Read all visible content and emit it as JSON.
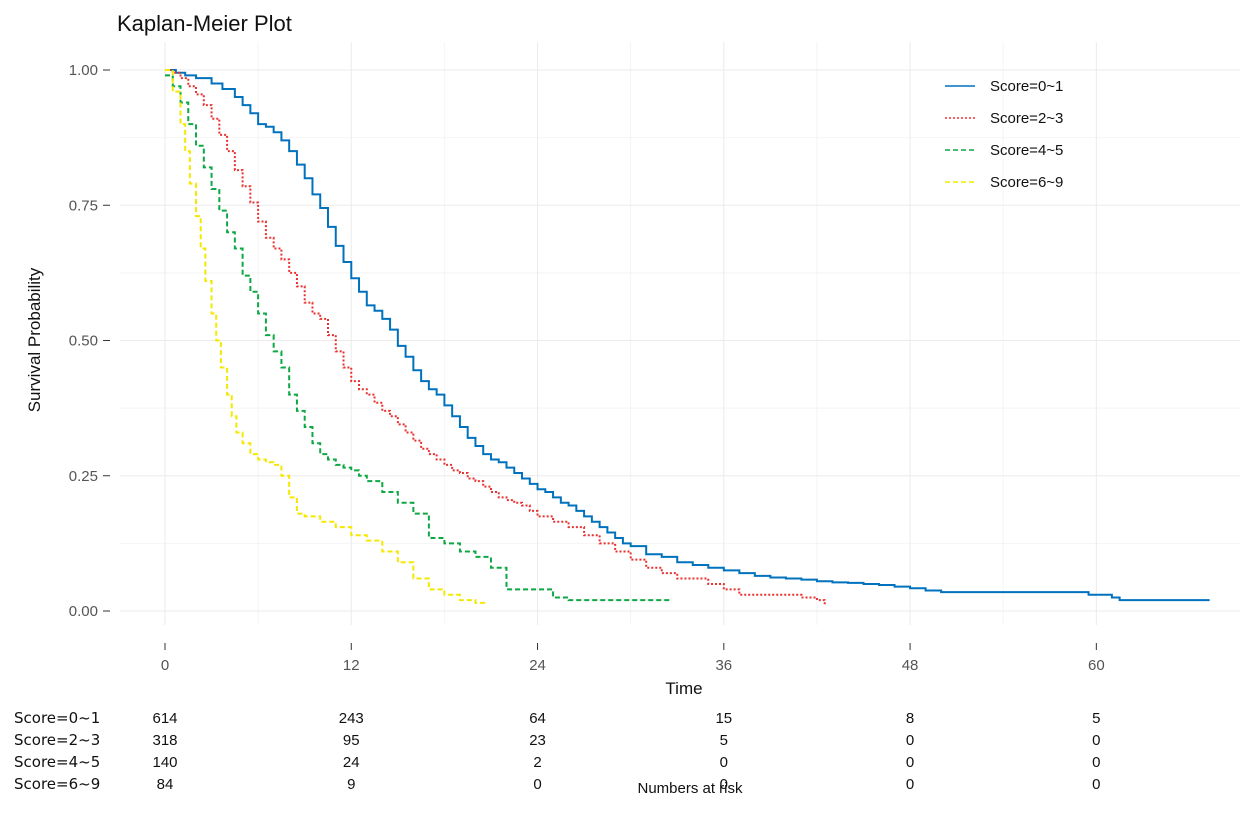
{
  "chart_data": {
    "type": "line",
    "title": "Kaplan-Meier Plot",
    "xlabel": "Time",
    "ylabel": "Survival Probability",
    "xlim": [
      0,
      67
    ],
    "ylim": [
      0,
      1
    ],
    "xticks": [
      0,
      12,
      24,
      36,
      48,
      60
    ],
    "yticks": [
      0,
      0.25,
      0.5,
      0.75,
      1
    ],
    "ytick_labels": [
      "0.00",
      "0.25",
      "0.50",
      "0.75",
      "1.00"
    ],
    "grid": true,
    "legend_position": "top-right",
    "series": [
      {
        "name": "Score=0~1",
        "color": "#0072BD",
        "dash": "solid",
        "x": [
          0,
          0.7,
          1.3,
          2,
          3,
          3.7,
          4.5,
          5,
          5.5,
          6,
          6.5,
          7,
          7.5,
          8,
          8.5,
          9,
          9.5,
          10,
          10.5,
          11,
          11.5,
          12,
          12.5,
          13,
          13.5,
          14,
          14.5,
          15,
          15.5,
          16,
          16.5,
          17,
          17.5,
          18,
          18.5,
          19,
          19.5,
          20,
          20.5,
          21,
          21.5,
          22,
          22.5,
          23,
          23.5,
          24,
          24.5,
          25,
          25.5,
          26,
          26.5,
          27,
          27.5,
          28,
          28.5,
          29,
          29.5,
          30,
          31,
          32,
          33,
          34,
          35,
          36,
          37,
          38,
          39,
          40,
          41,
          42,
          43,
          44,
          45,
          46,
          47,
          48,
          49,
          50,
          52,
          54,
          56,
          58,
          59.5,
          61,
          61.5,
          63,
          65,
          67.3
        ],
        "y": [
          1.0,
          0.995,
          0.99,
          0.985,
          0.975,
          0.965,
          0.95,
          0.935,
          0.92,
          0.9,
          0.895,
          0.885,
          0.87,
          0.85,
          0.825,
          0.8,
          0.77,
          0.745,
          0.71,
          0.675,
          0.645,
          0.615,
          0.59,
          0.565,
          0.555,
          0.54,
          0.52,
          0.49,
          0.47,
          0.445,
          0.425,
          0.41,
          0.4,
          0.38,
          0.36,
          0.34,
          0.32,
          0.305,
          0.29,
          0.28,
          0.275,
          0.265,
          0.255,
          0.245,
          0.235,
          0.225,
          0.22,
          0.21,
          0.2,
          0.195,
          0.185,
          0.175,
          0.165,
          0.155,
          0.145,
          0.135,
          0.125,
          0.12,
          0.105,
          0.1,
          0.09,
          0.085,
          0.08,
          0.075,
          0.07,
          0.065,
          0.062,
          0.06,
          0.058,
          0.055,
          0.053,
          0.052,
          0.05,
          0.048,
          0.045,
          0.042,
          0.038,
          0.035,
          0.035,
          0.035,
          0.035,
          0.035,
          0.03,
          0.025,
          0.02,
          0.02,
          0.02,
          0.02
        ]
      },
      {
        "name": "Score=2~3",
        "color": "#E8312F",
        "dash": "dotted",
        "x": [
          0,
          0.5,
          1,
          1.5,
          2,
          2.5,
          3,
          3.5,
          4,
          4.5,
          5,
          5.5,
          6,
          6.5,
          7,
          7.5,
          8,
          8.5,
          9,
          9.5,
          10,
          10.5,
          11,
          11.5,
          12,
          12.5,
          13,
          13.5,
          14,
          14.5,
          15,
          15.5,
          16,
          16.5,
          17,
          17.5,
          18,
          18.5,
          19,
          19.5,
          20,
          20.5,
          21,
          21.5,
          22,
          22.5,
          23,
          23.5,
          24,
          25,
          26,
          27,
          28,
          29,
          30,
          31,
          32,
          33,
          34,
          35,
          36,
          37,
          38,
          39,
          40,
          41,
          42,
          42.5
        ],
        "y": [
          1.0,
          0.995,
          0.985,
          0.97,
          0.955,
          0.935,
          0.91,
          0.88,
          0.85,
          0.815,
          0.785,
          0.755,
          0.72,
          0.69,
          0.67,
          0.65,
          0.625,
          0.6,
          0.57,
          0.55,
          0.54,
          0.51,
          0.48,
          0.45,
          0.425,
          0.41,
          0.4,
          0.385,
          0.37,
          0.36,
          0.345,
          0.33,
          0.315,
          0.3,
          0.29,
          0.28,
          0.27,
          0.26,
          0.255,
          0.245,
          0.24,
          0.23,
          0.22,
          0.21,
          0.205,
          0.2,
          0.195,
          0.185,
          0.175,
          0.165,
          0.155,
          0.14,
          0.125,
          0.11,
          0.095,
          0.08,
          0.07,
          0.06,
          0.06,
          0.05,
          0.04,
          0.03,
          0.03,
          0.03,
          0.03,
          0.025,
          0.02,
          0.01
        ]
      },
      {
        "name": "Score=4~5",
        "color": "#0DA843",
        "dash": "dashed",
        "x": [
          0,
          0.5,
          1,
          1.5,
          2,
          2.5,
          3,
          3.5,
          4,
          4.5,
          5,
          5.5,
          6,
          6.5,
          7,
          7.5,
          8,
          8.5,
          9,
          9.5,
          10,
          10.5,
          11,
          11.5,
          12,
          12.5,
          13,
          14,
          15,
          16,
          17,
          18,
          19,
          20,
          21,
          22,
          23,
          24,
          25,
          26,
          28,
          30,
          32.5
        ],
        "y": [
          0.99,
          0.97,
          0.94,
          0.9,
          0.86,
          0.82,
          0.78,
          0.74,
          0.7,
          0.67,
          0.62,
          0.59,
          0.55,
          0.51,
          0.48,
          0.45,
          0.4,
          0.37,
          0.34,
          0.31,
          0.29,
          0.28,
          0.27,
          0.265,
          0.26,
          0.25,
          0.24,
          0.22,
          0.2,
          0.18,
          0.135,
          0.125,
          0.11,
          0.1,
          0.08,
          0.04,
          0.04,
          0.04,
          0.025,
          0.02,
          0.02,
          0.02,
          0.02
        ]
      },
      {
        "name": "Score=6~9",
        "color": "#F5E800",
        "dash": "dashed",
        "x": [
          0,
          0.5,
          1,
          1.3,
          1.6,
          2,
          2.3,
          2.6,
          3,
          3.3,
          3.6,
          4,
          4.3,
          4.6,
          5,
          5.5,
          6,
          6.5,
          7,
          7.5,
          8,
          8.5,
          9,
          10,
          11,
          12,
          13,
          14,
          15,
          16,
          17,
          18,
          19,
          20,
          20.8
        ],
        "y": [
          1.0,
          0.96,
          0.9,
          0.85,
          0.79,
          0.73,
          0.67,
          0.61,
          0.55,
          0.5,
          0.45,
          0.4,
          0.36,
          0.33,
          0.31,
          0.29,
          0.28,
          0.275,
          0.27,
          0.25,
          0.21,
          0.18,
          0.175,
          0.165,
          0.155,
          0.14,
          0.13,
          0.11,
          0.09,
          0.06,
          0.04,
          0.03,
          0.02,
          0.015,
          0.015
        ]
      }
    ],
    "risk_table": {
      "title": "Numbers at risk",
      "times": [
        0,
        12,
        24,
        36,
        48,
        60
      ],
      "rows": [
        {
          "label": "Score=0~1",
          "values": [
            "614",
            "243",
            "64",
            "15",
            "8",
            "5"
          ]
        },
        {
          "label": "Score=2~3",
          "values": [
            "318",
            "95",
            "23",
            "5",
            "0",
            "0"
          ]
        },
        {
          "label": "Score=4~5",
          "values": [
            "140",
            "24",
            "2",
            "0",
            "0",
            "0"
          ]
        },
        {
          "label": "Score=6~9",
          "values": [
            "84",
            "9",
            "0",
            "0",
            "0",
            "0"
          ]
        }
      ]
    }
  }
}
